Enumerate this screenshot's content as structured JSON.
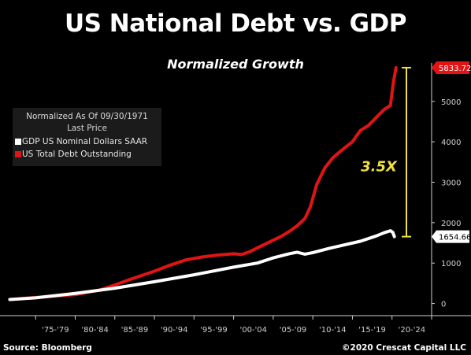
{
  "chart_data": {
    "type": "line",
    "title": "US National Debt vs. GDP",
    "subtitle": "Normalized Growth",
    "legend": {
      "header": [
        "Normalized As Of 09/30/1971",
        "Last Price"
      ],
      "placement": "top-left",
      "items": [
        {
          "label": "GDP US Nominal Dollars SAAR",
          "color": "#ffffff"
        },
        {
          "label": "US Total Debt Outstanding",
          "color": "#e01414"
        }
      ]
    },
    "x_tick_labels": [
      "'75-'79",
      "'80-'84",
      "'85-'89",
      "'90-'94",
      "'95-'99",
      "'00-'04",
      "'05-'09",
      "'10-'14",
      "'15-'19",
      "'20-'24"
    ],
    "xlim": [
      1971,
      2025
    ],
    "ylim": [
      -300,
      5950
    ],
    "y_ticks": [
      0,
      1000,
      2000,
      3000,
      4000,
      5000
    ],
    "y_tick_labels": [
      "0",
      "1000",
      "2000",
      "3000",
      "4000",
      "5000"
    ],
    "grid": false,
    "series": [
      {
        "name": "US Total Debt Outstanding",
        "color": "#e01414",
        "last_value_label": "5833.72",
        "x": [
          1971.75,
          1975,
          1980,
          1983,
          1985,
          1987,
          1990,
          1992,
          1994,
          1996,
          1998,
          2000,
          2001,
          2002,
          2004,
          2006,
          2007,
          2008,
          2009,
          2009.7,
          2010.5,
          2011.5,
          2012.5,
          2014,
          2015,
          2016,
          2017,
          2018,
          2019,
          2019.8,
          2020.2,
          2020.5
        ],
        "y": [
          100,
          150,
          220,
          330,
          460,
          600,
          800,
          950,
          1080,
          1150,
          1200,
          1230,
          1210,
          1280,
          1470,
          1660,
          1780,
          1920,
          2100,
          2400,
          2950,
          3350,
          3600,
          3850,
          4000,
          4280,
          4400,
          4600,
          4800,
          4900,
          5500,
          5833.72
        ]
      },
      {
        "name": "GDP US Nominal Dollars SAAR",
        "color": "#ffffff",
        "last_value_label": "1654.66",
        "x": [
          1971.75,
          1975,
          1980,
          1985,
          1990,
          1995,
          2000,
          2003,
          2005,
          2007,
          2008,
          2009,
          2010,
          2012,
          2014,
          2016,
          2018,
          2019,
          2019.8,
          2020.1,
          2020.3
        ],
        "y": [
          100,
          140,
          250,
          380,
          540,
          710,
          900,
          1000,
          1130,
          1230,
          1270,
          1220,
          1260,
          1360,
          1450,
          1540,
          1670,
          1750,
          1800,
          1760,
          1654.66
        ]
      }
    ],
    "annotations": [
      {
        "text": "3.5X",
        "color": "#f0e040"
      }
    ]
  },
  "footer": {
    "source": "Source: Bloomberg",
    "copyright": "©2020 Crescat Capital LLC"
  }
}
